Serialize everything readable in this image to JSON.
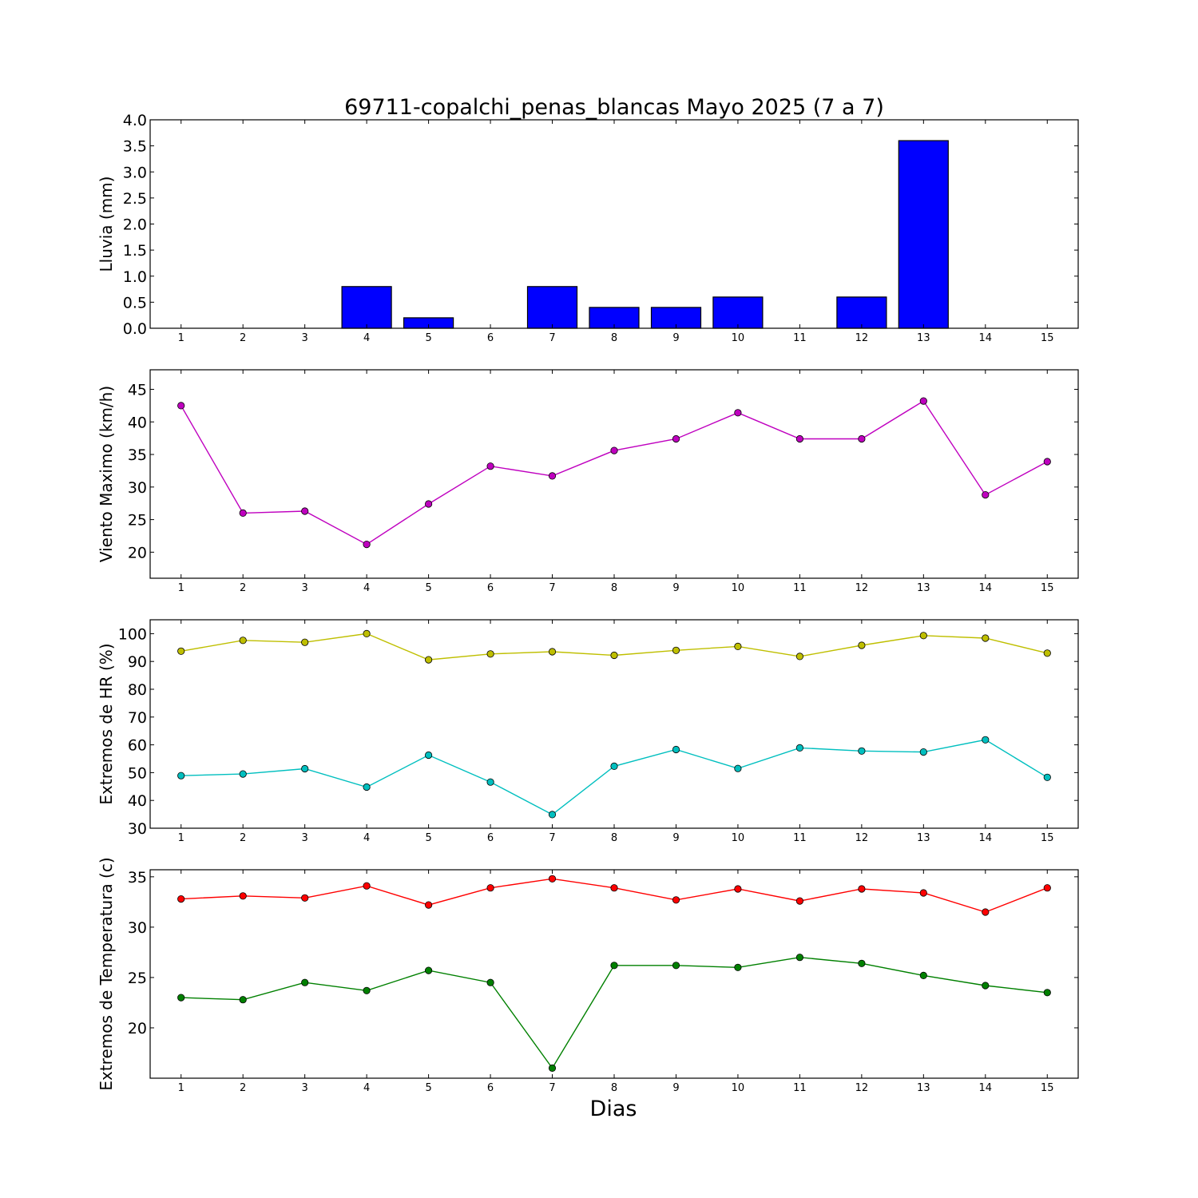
{
  "figure_title": "69711-copalchi_penas_blancas Mayo 2025  (7 a 7)",
  "xlabel": "Dias",
  "colors": {
    "lluvia": "#0000ff",
    "viento": "#bf00bf",
    "hr_max": "#bfbf00",
    "hr_min": "#00bfbf",
    "temp_max": "#ff0000",
    "temp_min": "#008000"
  },
  "chart_data": [
    {
      "type": "bar",
      "ylabel": "Lluvia (mm)",
      "categories": [
        1,
        2,
        3,
        4,
        5,
        6,
        7,
        8,
        9,
        10,
        11,
        12,
        13,
        14,
        15
      ],
      "xlim": [
        0.5,
        15.5
      ],
      "ylim": [
        0,
        4.0
      ],
      "yticks": [
        "0.0",
        "0.5",
        "1.0",
        "1.5",
        "2.0",
        "2.5",
        "3.0",
        "3.5",
        "4.0"
      ],
      "values": [
        0,
        0,
        0,
        0.8,
        0.2,
        0,
        0.8,
        0.4,
        0.4,
        0.6,
        0,
        0.6,
        3.6,
        0,
        0
      ],
      "grid": false
    },
    {
      "type": "line",
      "ylabel": "Viento Maximo (km/h)",
      "x": [
        1,
        2,
        3,
        4,
        5,
        6,
        7,
        8,
        9,
        10,
        11,
        12,
        13,
        14,
        15
      ],
      "xlim": [
        0.5,
        15.5
      ],
      "ylim": [
        16,
        48
      ],
      "yticks": [
        "20",
        "25",
        "30",
        "35",
        "40",
        "45"
      ],
      "series": [
        {
          "values": [
            42.5,
            26.0,
            26.3,
            21.2,
            27.4,
            33.2,
            31.7,
            35.6,
            37.4,
            41.4,
            37.4,
            37.4,
            43.2,
            28.8,
            33.9
          ]
        }
      ],
      "grid": false
    },
    {
      "type": "line",
      "ylabel": "Extremos de HR (%)",
      "x": [
        1,
        2,
        3,
        4,
        5,
        6,
        7,
        8,
        9,
        10,
        11,
        12,
        13,
        14,
        15
      ],
      "xlim": [
        0.5,
        15.5
      ],
      "ylim": [
        30,
        105
      ],
      "yticks": [
        "30",
        "40",
        "50",
        "60",
        "70",
        "80",
        "90",
        "100"
      ],
      "series": [
        {
          "values": [
            93.7,
            97.6,
            96.9,
            100.0,
            90.6,
            92.7,
            93.5,
            92.2,
            94.0,
            95.4,
            91.8,
            95.8,
            99.3,
            98.4,
            93.0
          ]
        },
        {
          "values": [
            48.9,
            49.5,
            51.4,
            44.8,
            56.3,
            46.6,
            34.9,
            52.3,
            58.3,
            51.5,
            58.9,
            57.8,
            57.4,
            61.8,
            48.3
          ]
        }
      ],
      "grid": false
    },
    {
      "type": "line",
      "ylabel": "Extremos de Temperatura (c)",
      "x": [
        1,
        2,
        3,
        4,
        5,
        6,
        7,
        8,
        9,
        10,
        11,
        12,
        13,
        14,
        15
      ],
      "xlim": [
        0.5,
        15.5
      ],
      "ylim": [
        15,
        35.7
      ],
      "yticks": [
        "20",
        "25",
        "30",
        "35"
      ],
      "series": [
        {
          "values": [
            32.8,
            33.1,
            32.9,
            34.1,
            32.2,
            33.9,
            34.8,
            33.9,
            32.7,
            33.8,
            32.6,
            33.8,
            33.4,
            31.5,
            33.9
          ]
        },
        {
          "values": [
            23.0,
            22.8,
            24.5,
            23.7,
            25.7,
            24.5,
            16.0,
            26.2,
            26.2,
            26.0,
            27.0,
            26.4,
            25.2,
            24.2,
            23.5
          ]
        }
      ],
      "grid": false
    }
  ]
}
